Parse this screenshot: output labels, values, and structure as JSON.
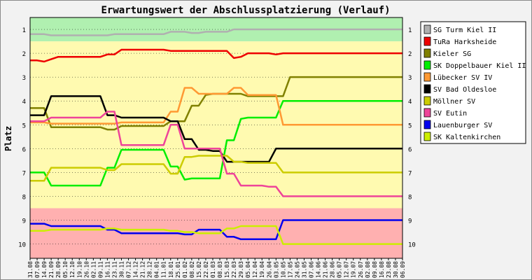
{
  "chart_data": {
    "type": "line",
    "title": "Erwartungswert der Abschlussplatzierung (Verlauf)",
    "ylabel": "Platz",
    "xlabel": "",
    "ylim": [
      0.5,
      10.6
    ],
    "y_reversed": true,
    "y_ticks": [
      1,
      2,
      3,
      4,
      5,
      6,
      7,
      8,
      9,
      10
    ],
    "x": [
      "31.08",
      "07.09",
      "14.09",
      "21.09",
      "28.09",
      "05.10",
      "12.10",
      "19.10",
      "26.10",
      "02.11",
      "09.11",
      "16.11",
      "23.11",
      "30.11",
      "07.12",
      "14.12",
      "21.12",
      "28.12",
      "04.01",
      "11.01",
      "18.01",
      "25.01",
      "01.02",
      "08.02",
      "15.02",
      "22.02",
      "01.03",
      "08.03",
      "15.03",
      "22.03",
      "29.03",
      "05.04",
      "12.04",
      "19.04",
      "26.04",
      "03.05",
      "10.05",
      "17.05",
      "24.05",
      "31.05",
      "07.06",
      "14.06",
      "21.06",
      "28.06",
      "05.07",
      "12.07",
      "19.07",
      "26.07",
      "02.08",
      "09.08",
      "16.08",
      "23.08",
      "30.08",
      "06.09"
    ],
    "zones": [
      {
        "name": "top",
        "color": "#b0f0b0"
      },
      {
        "name": "middle",
        "color": "#fffab0"
      },
      {
        "name": "bottom",
        "color": "#ffb0b0"
      }
    ],
    "legend_position": "right",
    "series": [
      {
        "name": "SG Turm Kiel II",
        "color": "#b0b0b0",
        "values": [
          1.2,
          1.2,
          1.2,
          1.25,
          1.25,
          1.25,
          1.25,
          1.25,
          1.25,
          1.25,
          1.25,
          1.25,
          1.2,
          1.2,
          1.2,
          1.2,
          1.2,
          1.2,
          1.2,
          1.2,
          1.1,
          1.1,
          1.1,
          1.15,
          1.15,
          1.1,
          1.1,
          1.1,
          1.1,
          1.0,
          1.0,
          1.0,
          1.0,
          1.0,
          1.0,
          1.0,
          1.0,
          1.0,
          1.0,
          1.0,
          1.0,
          1.0,
          1.0,
          1.0,
          1.0,
          1.0,
          1.0,
          1.0,
          1.0,
          1.0,
          1.0,
          1.0,
          1.0,
          1.0
        ]
      },
      {
        "name": "TuRa Harksheide",
        "color": "#ee0000",
        "values": [
          2.3,
          2.3,
          2.35,
          2.25,
          2.15,
          2.15,
          2.15,
          2.15,
          2.15,
          2.15,
          2.15,
          2.05,
          2.05,
          1.85,
          1.85,
          1.85,
          1.85,
          1.85,
          1.85,
          1.85,
          1.9,
          1.9,
          1.9,
          1.9,
          1.9,
          1.9,
          1.9,
          1.9,
          1.9,
          2.2,
          2.15,
          2.0,
          2.0,
          2.0,
          2.0,
          2.05,
          2.0,
          2.0,
          2.0,
          2.0,
          2.0,
          2.0,
          2.0,
          2.0,
          2.0,
          2.0,
          2.0,
          2.0,
          2.0,
          2.0,
          2.0,
          2.0,
          2.0,
          2.0
        ]
      },
      {
        "name": "Kieler SG",
        "color": "#808000",
        "values": [
          4.3,
          4.3,
          4.3,
          5.1,
          5.1,
          5.1,
          5.1,
          5.1,
          5.1,
          5.1,
          5.1,
          5.2,
          5.2,
          5.05,
          5.05,
          5.05,
          5.05,
          5.05,
          5.05,
          5.05,
          4.85,
          4.85,
          4.85,
          4.2,
          4.2,
          3.75,
          3.7,
          3.7,
          3.7,
          3.7,
          3.7,
          3.8,
          3.8,
          3.8,
          3.8,
          3.8,
          3.8,
          3.0,
          3.0,
          3.0,
          3.0,
          3.0,
          3.0,
          3.0,
          3.0,
          3.0,
          3.0,
          3.0,
          3.0,
          3.0,
          3.0,
          3.0,
          3.0,
          3.0
        ]
      },
      {
        "name": "SK Doppelbauer Kiel II",
        "color": "#00ee00",
        "values": [
          7.0,
          7.0,
          7.0,
          7.55,
          7.55,
          7.55,
          7.55,
          7.55,
          7.55,
          7.55,
          7.55,
          6.8,
          6.8,
          6.05,
          6.05,
          6.05,
          6.05,
          6.05,
          6.05,
          6.05,
          6.75,
          6.75,
          7.3,
          7.25,
          7.25,
          7.25,
          7.25,
          7.25,
          5.65,
          5.65,
          4.75,
          4.7,
          4.7,
          4.7,
          4.7,
          4.7,
          4.0,
          4.0,
          4.0,
          4.0,
          4.0,
          4.0,
          4.0,
          4.0,
          4.0,
          4.0,
          4.0,
          4.0,
          4.0,
          4.0,
          4.0,
          4.0,
          4.0,
          4.0
        ]
      },
      {
        "name": "Lübecker SV IV",
        "color": "#ff9933",
        "values": [
          4.9,
          4.9,
          4.9,
          4.95,
          4.95,
          4.95,
          4.95,
          4.95,
          4.95,
          4.95,
          4.95,
          4.95,
          4.95,
          4.9,
          4.9,
          4.9,
          4.9,
          4.9,
          4.9,
          4.9,
          4.45,
          4.45,
          3.45,
          3.45,
          3.7,
          3.7,
          3.7,
          3.7,
          3.7,
          3.45,
          3.45,
          3.75,
          3.75,
          3.75,
          3.75,
          3.75,
          5.0,
          5.0,
          5.0,
          5.0,
          5.0,
          5.0,
          5.0,
          5.0,
          5.0,
          5.0,
          5.0,
          5.0,
          5.0,
          5.0,
          5.0,
          5.0,
          5.0,
          5.0
        ]
      },
      {
        "name": "SV Bad Oldesloe",
        "color": "#000000",
        "values": [
          4.6,
          4.6,
          4.6,
          3.8,
          3.8,
          3.8,
          3.8,
          3.8,
          3.8,
          3.8,
          3.8,
          4.6,
          4.6,
          4.7,
          4.7,
          4.7,
          4.7,
          4.7,
          4.7,
          4.7,
          4.85,
          4.85,
          5.6,
          5.6,
          6.05,
          6.05,
          6.1,
          6.1,
          6.55,
          6.55,
          6.55,
          6.55,
          6.55,
          6.55,
          6.55,
          6.0,
          6.0,
          6.0,
          6.0,
          6.0,
          6.0,
          6.0,
          6.0,
          6.0,
          6.0,
          6.0,
          6.0,
          6.0,
          6.0,
          6.0,
          6.0,
          6.0,
          6.0,
          6.0
        ]
      },
      {
        "name": "Möllner SV",
        "color": "#cccc00",
        "values": [
          7.35,
          7.35,
          7.35,
          6.8,
          6.8,
          6.8,
          6.8,
          6.8,
          6.8,
          6.8,
          6.8,
          6.9,
          6.9,
          6.65,
          6.65,
          6.65,
          6.65,
          6.65,
          6.65,
          6.65,
          7.05,
          7.05,
          6.35,
          6.35,
          6.3,
          6.3,
          6.3,
          6.3,
          6.3,
          6.55,
          6.55,
          6.6,
          6.6,
          6.6,
          6.6,
          6.6,
          7.0,
          7.0,
          7.0,
          7.0,
          7.0,
          7.0,
          7.0,
          7.0,
          7.0,
          7.0,
          7.0,
          7.0,
          7.0,
          7.0,
          7.0,
          7.0,
          7.0,
          7.0
        ]
      },
      {
        "name": "SV Eutin",
        "color": "#ee4499",
        "values": [
          4.85,
          4.85,
          4.85,
          4.7,
          4.7,
          4.7,
          4.7,
          4.7,
          4.7,
          4.7,
          4.7,
          4.45,
          4.45,
          5.85,
          5.85,
          5.85,
          5.85,
          5.85,
          5.85,
          5.85,
          5.0,
          5.0,
          6.0,
          6.0,
          6.0,
          6.0,
          6.0,
          6.0,
          7.05,
          7.05,
          7.55,
          7.55,
          7.55,
          7.55,
          7.6,
          7.6,
          8.0,
          8.0,
          8.0,
          8.0,
          8.0,
          8.0,
          8.0,
          8.0,
          8.0,
          8.0,
          8.0,
          8.0,
          8.0,
          8.0,
          8.0,
          8.0,
          8.0,
          8.0
        ]
      },
      {
        "name": "Lauenburger SV",
        "color": "#0000ee",
        "values": [
          9.15,
          9.15,
          9.15,
          9.25,
          9.25,
          9.25,
          9.25,
          9.25,
          9.25,
          9.25,
          9.25,
          9.4,
          9.4,
          9.55,
          9.55,
          9.55,
          9.55,
          9.55,
          9.55,
          9.55,
          9.55,
          9.55,
          9.6,
          9.6,
          9.4,
          9.4,
          9.4,
          9.4,
          9.7,
          9.7,
          9.8,
          9.8,
          9.8,
          9.8,
          9.8,
          9.8,
          9.0,
          9.0,
          9.0,
          9.0,
          9.0,
          9.0,
          9.0,
          9.0,
          9.0,
          9.0,
          9.0,
          9.0,
          9.0,
          9.0,
          9.0,
          9.0,
          9.0,
          9.0
        ]
      },
      {
        "name": "SK Kaltenkirchen",
        "color": "#ccee00",
        "values": [
          9.45,
          9.45,
          9.45,
          9.4,
          9.4,
          9.4,
          9.4,
          9.4,
          9.4,
          9.4,
          9.4,
          9.35,
          9.35,
          9.4,
          9.4,
          9.4,
          9.4,
          9.4,
          9.4,
          9.4,
          9.45,
          9.45,
          9.5,
          9.5,
          9.55,
          9.55,
          9.55,
          9.55,
          9.35,
          9.35,
          9.25,
          9.25,
          9.25,
          9.25,
          9.25,
          9.25,
          10.0,
          10.0,
          10.0,
          10.0,
          10.0,
          10.0,
          10.0,
          10.0,
          10.0,
          10.0,
          10.0,
          10.0,
          10.0,
          10.0,
          10.0,
          10.0,
          10.0,
          10.0
        ]
      }
    ]
  }
}
